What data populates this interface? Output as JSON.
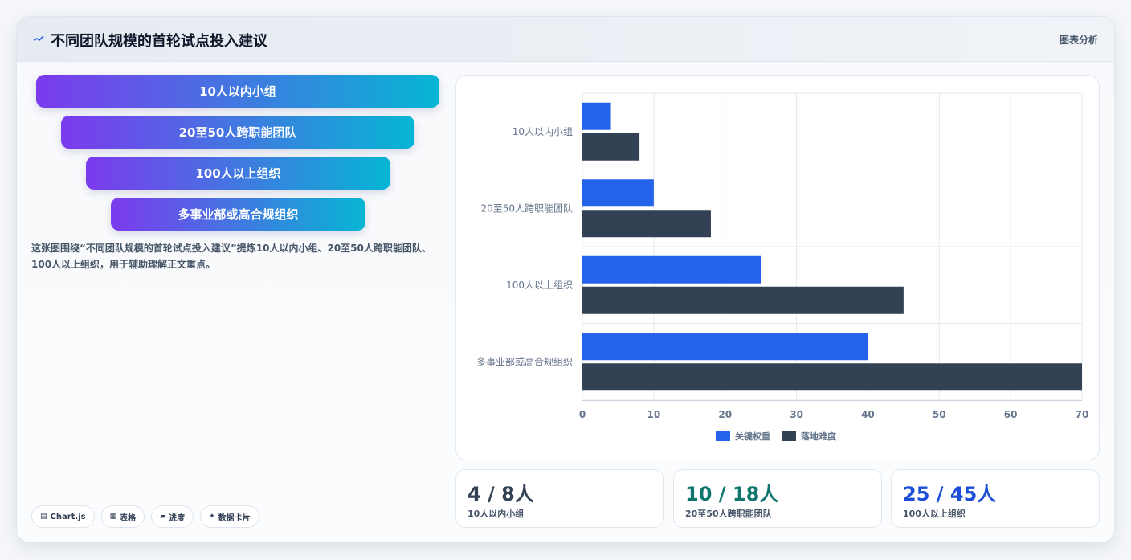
{
  "header": {
    "title": "不同团队规模的首轮试点投入建议",
    "tag": "图表分析"
  },
  "funnel": [
    {
      "label": "10人以内小组"
    },
    {
      "label": "20至50人跨职能团队"
    },
    {
      "label": "100人以上组织"
    },
    {
      "label": "多事业部或高合规组织"
    }
  ],
  "description": "这张图围绕“不同团队规模的首轮试点投入建议”提炼10人以内小组、20至50人跨职能团队、100人以上组织，用于辅助理解正文重点。",
  "chips": [
    {
      "icon": "▤",
      "label": "Chart.js"
    },
    {
      "icon": "▦",
      "label": "表格"
    },
    {
      "icon": "▰",
      "label": "进度"
    },
    {
      "icon": "✦",
      "label": "数据卡片"
    }
  ],
  "chart_data": {
    "type": "bar",
    "orientation": "horizontal",
    "categories": [
      "10人以内小组",
      "20至50人跨职能团队",
      "100人以上组织",
      "多事业部或高合规组织"
    ],
    "series": [
      {
        "name": "关键权重",
        "values": [
          4,
          10,
          25,
          40
        ],
        "color": "#2563eb"
      },
      {
        "name": "落地难度",
        "values": [
          8,
          18,
          45,
          70
        ],
        "color": "#334155"
      }
    ],
    "xlim": [
      0,
      70
    ],
    "xticks": [
      0,
      10,
      20,
      30,
      40,
      50,
      60,
      70
    ],
    "grid": true,
    "legend": "bottom"
  },
  "stats": [
    {
      "value": "4 / 8人",
      "label": "10人以内小组",
      "color": "#334155"
    },
    {
      "value": "10 / 18人",
      "label": "20至50人跨职能团队",
      "color": "#0f766e"
    },
    {
      "value": "25 / 45人",
      "label": "100人以上组织",
      "color": "#1d4ed8"
    }
  ]
}
